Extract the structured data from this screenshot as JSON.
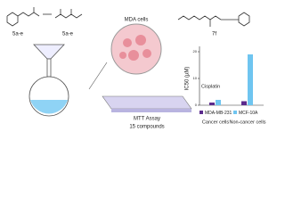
{
  "diagram": {
    "compound_labels": [
      "5a-e",
      "5a-e",
      "7f"
    ],
    "dish_label": "MDA cells",
    "plate_label": "MTT Assay",
    "plate_sublabel": "15 compounds"
  },
  "chart_data": {
    "type": "bar",
    "y_label": "IC50 (µM)",
    "annotation": "Cisplatin",
    "categories": [
      "Cancer cells",
      "Non-cancer cells"
    ],
    "series": [
      {
        "name": "MDA-MB-231",
        "color": "#5b2a8c",
        "values": [
          1,
          1.5
        ]
      },
      {
        "name": "MCF-10A",
        "color": "#6fc5f0",
        "values": [
          2,
          19
        ]
      }
    ],
    "ylim": [
      0,
      22
    ],
    "yticks": [
      0,
      10,
      20
    ]
  }
}
